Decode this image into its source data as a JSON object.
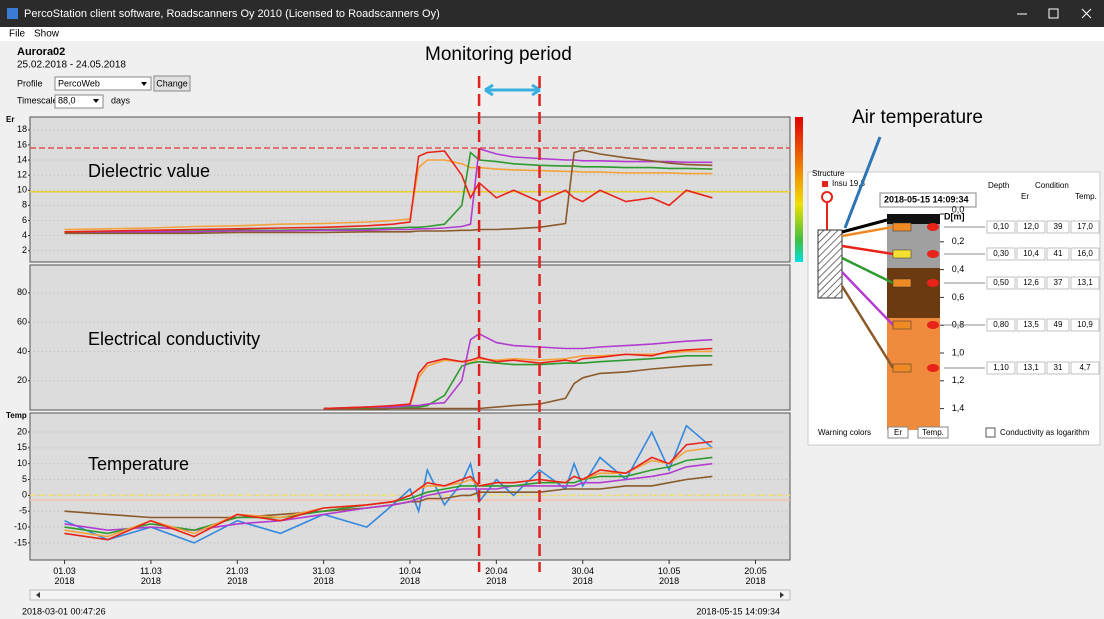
{
  "window": {
    "title": "PercoStation client software, Roadscanners Oy 2010 (Licensed to Roadscanners Oy)",
    "menu": [
      "File",
      "Show"
    ]
  },
  "header": {
    "title": "Aurora02",
    "date_range": "25.02.2018 - 24.05.2018",
    "profile_label": "Profile",
    "profile_value": "PercoWeb",
    "change_button": "Change",
    "timescale_label": "Timescale",
    "timescale_value": "88,0",
    "timescale_unit": "days"
  },
  "annotations": {
    "monitoring_period": {
      "label": "Monitoring period",
      "dates": [
        "2018-04-18",
        "2018-04-25"
      ]
    },
    "air_temperature": "Air temperature"
  },
  "chart_data": [
    {
      "type": "line",
      "y_label": "Er",
      "annotation": "Dielectric value",
      "xlim": [
        "2018-02-25",
        "2018-05-24"
      ],
      "ylim": [
        0.5,
        19.7
      ],
      "yticks": [
        2,
        4,
        6,
        8,
        10,
        12,
        14,
        16,
        18
      ],
      "grid": true,
      "thresholds": [
        {
          "value": 15.6,
          "color": "#e05050"
        },
        {
          "value": 9.8,
          "color": "#e8d030"
        }
      ],
      "x": [
        "2018-03-01",
        "2018-03-06",
        "2018-03-11",
        "2018-03-16",
        "2018-03-21",
        "2018-03-26",
        "2018-03-31",
        "2018-04-05",
        "2018-04-08",
        "2018-04-10",
        "2018-04-11",
        "2018-04-12",
        "2018-04-14",
        "2018-04-16",
        "2018-04-17",
        "2018-04-18",
        "2018-04-20",
        "2018-04-22",
        "2018-04-25",
        "2018-04-28",
        "2018-04-29",
        "2018-04-30",
        "2018-05-02",
        "2018-05-05",
        "2018-05-08",
        "2018-05-10",
        "2018-05-12",
        "2018-05-15"
      ],
      "series": [
        {
          "color": "#f4a23c",
          "values": [
            4.8,
            4.9,
            5.0,
            5.2,
            5.3,
            5.5,
            5.6,
            5.8,
            6.0,
            6.2,
            13,
            14,
            14,
            13.5,
            13,
            13,
            12.8,
            12.7,
            12.6,
            12.5,
            12.5,
            12.4,
            12.4,
            12.3,
            12.3,
            12.3,
            12.2,
            12.2
          ]
        },
        {
          "color": "#2f9a2f",
          "values": [
            4.5,
            4.5,
            4.6,
            4.6,
            4.7,
            4.7,
            4.8,
            4.9,
            5.0,
            5.1,
            5.1,
            5.2,
            5.5,
            8,
            15,
            14,
            13.8,
            13.5,
            13.3,
            13.2,
            13.2,
            13.1,
            13.1,
            13,
            13,
            12.9,
            12.9,
            12.8
          ]
        },
        {
          "color": "#b23ccf",
          "values": [
            4.4,
            4.5,
            4.5,
            4.5,
            4.6,
            4.6,
            4.7,
            4.7,
            4.8,
            4.8,
            4.9,
            4.9,
            5.0,
            5.2,
            5.5,
            15.5,
            14.8,
            14.4,
            14.2,
            14.0,
            14.0,
            13.9,
            13.9,
            13.8,
            13.8,
            13.8,
            13.7,
            13.7
          ]
        },
        {
          "color": "#8a5a2b",
          "values": [
            4.3,
            4.3,
            4.3,
            4.3,
            4.4,
            4.4,
            4.4,
            4.5,
            4.5,
            4.5,
            4.6,
            4.6,
            4.6,
            4.7,
            4.7,
            4.8,
            4.8,
            4.9,
            5.1,
            5.6,
            15,
            15.3,
            14.8,
            14.3,
            13.9,
            13.6,
            13.4,
            13.3
          ]
        },
        {
          "color": "#e8241a",
          "values": [
            4.5,
            4.6,
            4.7,
            4.8,
            4.9,
            5.0,
            5.1,
            5.3,
            5.5,
            5.8,
            14.5,
            15,
            15.2,
            12,
            9,
            11,
            9,
            10,
            8.5,
            10,
            9,
            8.5,
            10,
            8.5,
            9,
            8,
            10,
            9
          ]
        }
      ]
    },
    {
      "type": "line",
      "annotation": "Electrical conductivity",
      "xlim": [
        "2018-02-25",
        "2018-05-24"
      ],
      "ylim": [
        0,
        99
      ],
      "yticks": [
        20,
        40,
        60,
        80
      ],
      "grid": true,
      "x": [
        "2018-03-01",
        "2018-03-06",
        "2018-03-11",
        "2018-03-16",
        "2018-03-21",
        "2018-03-26",
        "2018-03-31",
        "2018-04-05",
        "2018-04-08",
        "2018-04-10",
        "2018-04-11",
        "2018-04-12",
        "2018-04-14",
        "2018-04-16",
        "2018-04-17",
        "2018-04-18",
        "2018-04-20",
        "2018-04-22",
        "2018-04-25",
        "2018-04-28",
        "2018-04-29",
        "2018-04-30",
        "2018-05-02",
        "2018-05-05",
        "2018-05-08",
        "2018-05-10",
        "2018-05-12",
        "2018-05-15"
      ],
      "series": [
        {
          "color": "#f4a23c",
          "values": [
            null,
            null,
            null,
            null,
            null,
            null,
            1,
            2,
            2,
            3,
            22,
            30,
            34,
            33,
            32,
            35,
            34,
            35,
            34,
            35,
            36,
            37,
            37,
            38,
            38,
            39,
            40,
            40
          ]
        },
        {
          "color": "#2f9a2f",
          "values": [
            null,
            null,
            null,
            null,
            null,
            null,
            1,
            1,
            2,
            2,
            2,
            3,
            10,
            30,
            32,
            33,
            32,
            31,
            31,
            32,
            32,
            32,
            33,
            34,
            35,
            36,
            37,
            37
          ]
        },
        {
          "color": "#8a5a2b",
          "values": [
            null,
            null,
            null,
            null,
            null,
            null,
            0.5,
            0.5,
            1,
            1,
            1,
            1,
            1,
            1,
            1,
            1,
            2,
            3,
            4,
            8,
            18,
            22,
            25,
            26,
            28,
            29,
            30,
            31
          ]
        },
        {
          "color": "#b23ccf",
          "values": [
            null,
            null,
            null,
            null,
            null,
            null,
            1,
            2,
            2,
            3,
            3,
            4,
            5,
            20,
            48,
            52,
            46,
            44,
            43,
            42,
            42,
            42,
            43,
            44,
            45,
            46,
            47,
            48
          ]
        },
        {
          "color": "#e8241a",
          "values": [
            null,
            null,
            null,
            null,
            null,
            null,
            1,
            2,
            3,
            4,
            25,
            32,
            35,
            33,
            34,
            36,
            33,
            34,
            32,
            34,
            33,
            35,
            36,
            38,
            37,
            40,
            41,
            42
          ]
        }
      ]
    },
    {
      "type": "line",
      "y_label": "Temp",
      "annotation": "Temperature",
      "xlim": [
        "2018-02-25",
        "2018-05-24"
      ],
      "ylim": [
        -20.4,
        26
      ],
      "yticks": [
        -15,
        -10,
        -5,
        0,
        5,
        10,
        15,
        20
      ],
      "grid": true,
      "thresholds": [
        {
          "value": 0,
          "color": "#f0e070"
        },
        {
          "value": -1.5,
          "color": "#f5c0b0"
        }
      ],
      "xticks": [
        {
          "value": "2018-03-01",
          "label": "01.03\n2018"
        },
        {
          "value": "2018-03-11",
          "label": "11.03\n2018"
        },
        {
          "value": "2018-03-21",
          "label": "21.03\n2018"
        },
        {
          "value": "2018-03-31",
          "label": "31.03\n2018"
        },
        {
          "value": "2018-04-10",
          "label": "10.04\n2018"
        },
        {
          "value": "2018-04-20",
          "label": "20.04\n2018"
        },
        {
          "value": "2018-04-30",
          "label": "30.04\n2018"
        },
        {
          "value": "2018-05-10",
          "label": "10.05\n2018"
        },
        {
          "value": "2018-05-20",
          "label": "20.05\n2018"
        }
      ],
      "x": [
        "2018-03-01",
        "2018-03-06",
        "2018-03-11",
        "2018-03-16",
        "2018-03-21",
        "2018-03-26",
        "2018-03-31",
        "2018-04-05",
        "2018-04-08",
        "2018-04-10",
        "2018-04-11",
        "2018-04-12",
        "2018-04-14",
        "2018-04-16",
        "2018-04-17",
        "2018-04-18",
        "2018-04-20",
        "2018-04-22",
        "2018-04-25",
        "2018-04-28",
        "2018-04-29",
        "2018-04-30",
        "2018-05-02",
        "2018-05-05",
        "2018-05-08",
        "2018-05-10",
        "2018-05-12",
        "2018-05-15"
      ],
      "series": [
        {
          "color": "#3388e0",
          "values": [
            -8,
            -14,
            -10,
            -15,
            -8,
            -12,
            -6,
            -10,
            -3,
            2,
            -5,
            8,
            -3,
            4,
            10,
            -2,
            5,
            0,
            8,
            2,
            10,
            3,
            12,
            5,
            20,
            8,
            22,
            15
          ]
        },
        {
          "color": "#8a5a2b",
          "values": [
            -5,
            -6,
            -7,
            -7,
            -7,
            -6,
            -5,
            -4,
            -3,
            -2,
            -2,
            -1,
            -1,
            0,
            0,
            1,
            1,
            1,
            1,
            2,
            2,
            2,
            2,
            3,
            3,
            4,
            5,
            6
          ]
        },
        {
          "color": "#b23ccf",
          "values": [
            -9,
            -11,
            -10,
            -11,
            -9,
            -8,
            -6,
            -4,
            -3,
            -2,
            -1,
            0,
            1,
            2,
            2,
            2,
            2,
            3,
            3,
            3,
            3,
            4,
            4,
            5,
            6,
            7,
            9,
            10
          ]
        },
        {
          "color": "#2f9a2f",
          "values": [
            -10,
            -12,
            -9,
            -11,
            -7,
            -7,
            -5,
            -3,
            -2,
            -1,
            0,
            1,
            2,
            3,
            3,
            3,
            3,
            3,
            4,
            4,
            4,
            5,
            6,
            6,
            8,
            9,
            11,
            12
          ]
        },
        {
          "color": "#f4a23c",
          "values": [
            -11,
            -13,
            -8,
            -12,
            -6,
            -7,
            -4,
            -3,
            -2,
            0,
            2,
            3,
            3,
            4,
            5,
            3,
            4,
            4,
            5,
            4,
            6,
            5,
            7,
            7,
            11,
            10,
            14,
            15
          ]
        },
        {
          "color": "#e8241a",
          "values": [
            -12,
            -14,
            -8,
            -13,
            -6,
            -8,
            -4,
            -3,
            -2,
            0,
            2,
            4,
            3,
            5,
            6,
            3,
            4,
            4,
            5,
            4,
            6,
            5,
            8,
            7,
            12,
            10,
            16,
            17
          ]
        }
      ]
    }
  ],
  "side_panel": {
    "structure_label": "Structure",
    "legend_label": "Insu 19,8",
    "timestamp": "2018-05-15 14:09:34",
    "depth_header": "Depth",
    "condition_header": "Condition",
    "er_header": "Er",
    "temp_header": "Temp.",
    "depth_unit": "D[m]",
    "depth_ticks": [
      "0,0",
      "0,2",
      "0,4",
      "0,6",
      "0,8",
      "1,0",
      "1,2",
      "1,4"
    ],
    "sensors": [
      {
        "depth": "0,10",
        "er": "12,0",
        "ec": "39",
        "temp": "17,0",
        "line_color": "#f08a24",
        "box_color": "#f08a24"
      },
      {
        "depth": "0,30",
        "er": "10,4",
        "ec": "41",
        "temp": "16,0",
        "line_color": "#e8241a",
        "box_color": "#f4e030"
      },
      {
        "depth": "0,50",
        "er": "12,6",
        "ec": "37",
        "temp": "13,1",
        "line_color": "#2f9a2f",
        "box_color": "#f08a24"
      },
      {
        "depth": "0,80",
        "er": "13,5",
        "ec": "49",
        "temp": "10,9",
        "line_color": "#b23ccf",
        "box_color": "#f08a24"
      },
      {
        "depth": "1,10",
        "er": "13,1",
        "ec": "31",
        "temp": "4,7",
        "line_color": "#8a5a2b",
        "box_color": "#f08a24"
      }
    ],
    "warning_label": "Warning colors",
    "warning_er": "Er",
    "warning_temp": "Temp.",
    "log_checkbox": "Conductivity as logarithm"
  },
  "footer": {
    "start": "2018-03-01 00:47:26",
    "end": "2018-05-15 14:09:34"
  }
}
